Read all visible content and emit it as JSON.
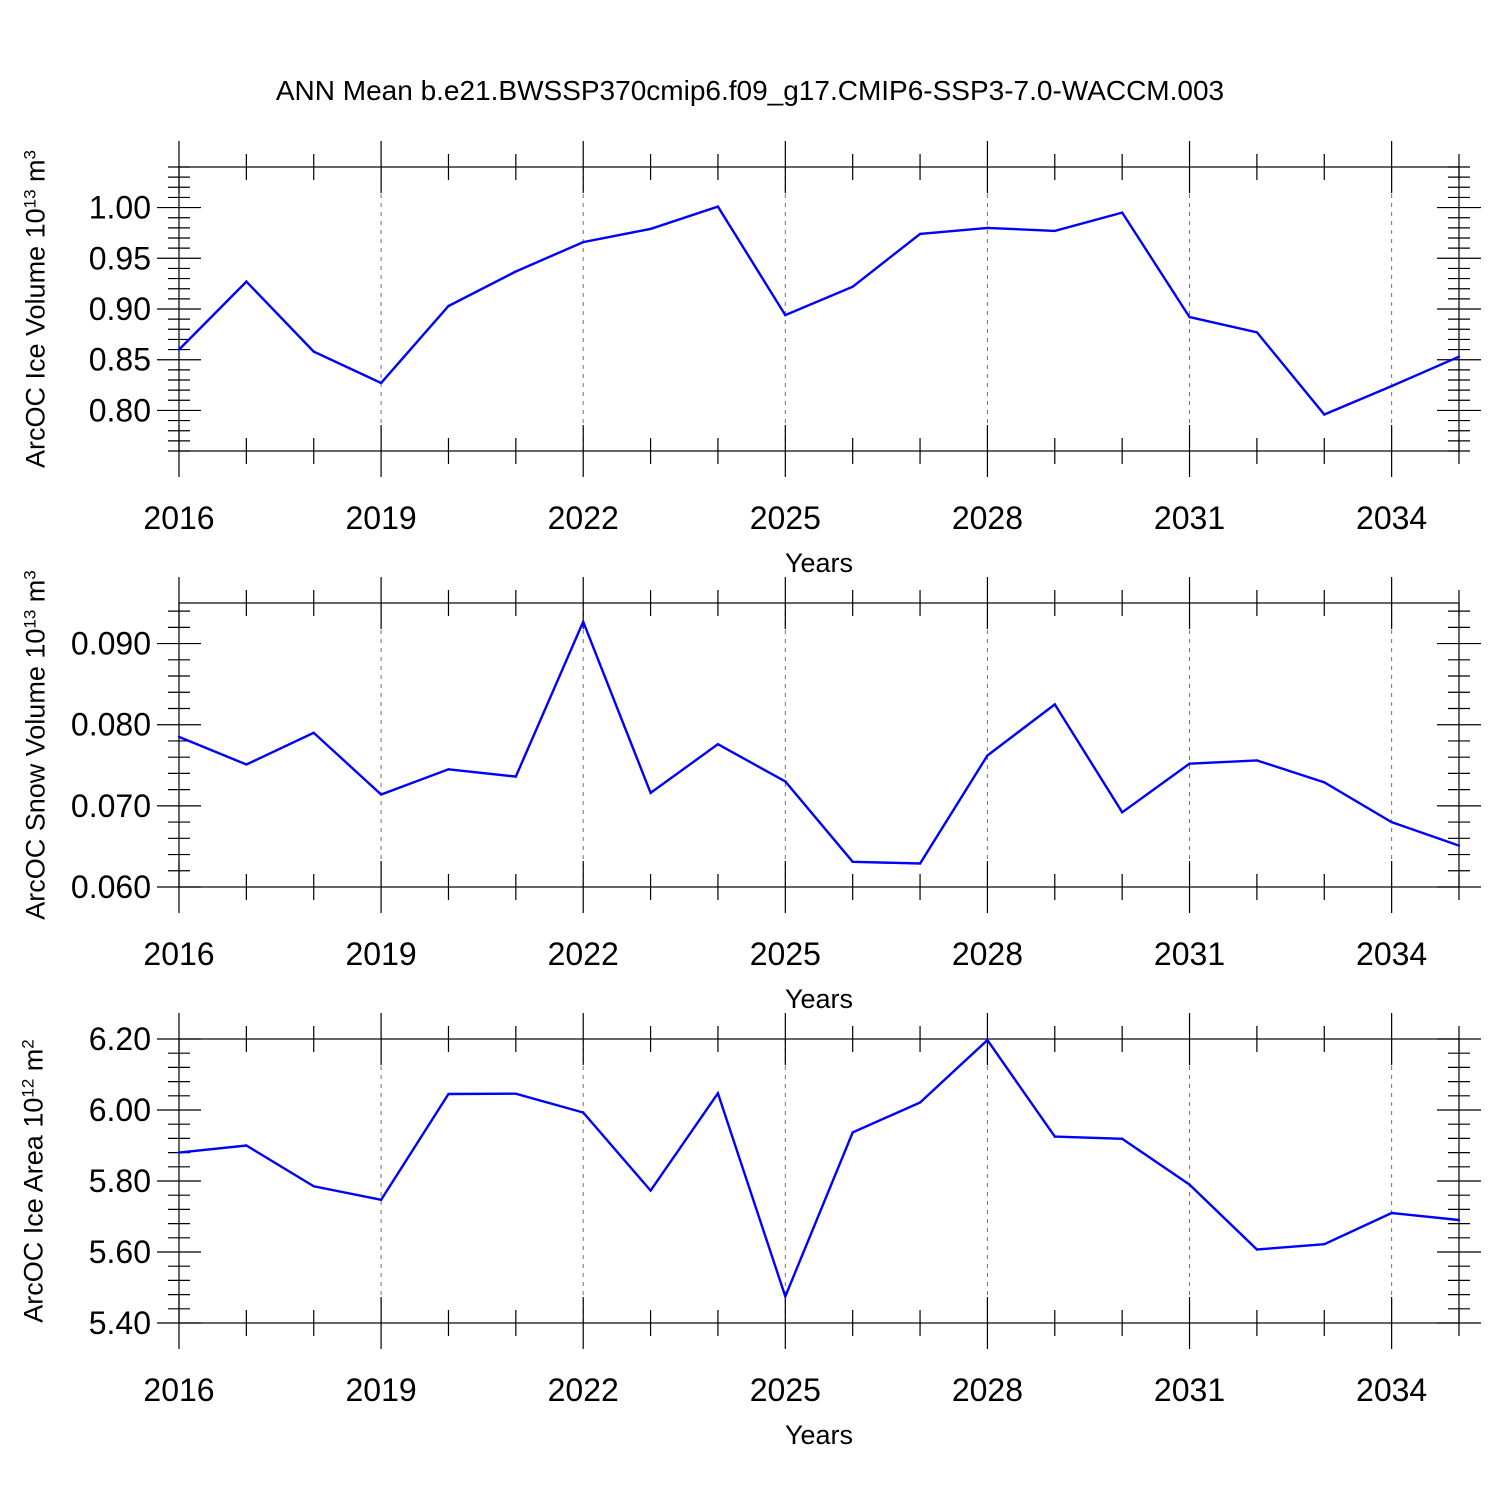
{
  "title": "ANN Mean b.e21.BWSSP370cmip6.f09_g17.CMIP6-SSP3-7.0-WACCM.003",
  "line_color": "#0000ff",
  "chart_data": [
    {
      "type": "line",
      "ylabel": "ArcOC Ice Volume 10",
      "ylabel_exp": "13",
      "ylabel_unit": " m",
      "ylabel_unit_exp": "3",
      "xlabel": "Years",
      "xlim": [
        2016,
        2035
      ],
      "ylim": [
        0.76,
        1.04
      ],
      "xticks": [
        2016,
        2019,
        2022,
        2025,
        2028,
        2031,
        2034
      ],
      "xtick_labels": [
        "2016",
        "2019",
        "2022",
        "2025",
        "2028",
        "2031",
        "2034"
      ],
      "yticks": [
        0.8,
        0.85,
        0.9,
        0.95,
        1.0
      ],
      "ytick_labels": [
        "0.80",
        "0.85",
        "0.90",
        "0.95",
        "1.00"
      ],
      "x": [
        2016,
        2017,
        2018,
        2019,
        2020,
        2021,
        2022,
        2023,
        2024,
        2025,
        2026,
        2027,
        2028,
        2029,
        2030,
        2031,
        2032,
        2033,
        2034,
        2035
      ],
      "values": [
        0.86,
        0.927,
        0.858,
        0.827,
        0.903,
        0.937,
        0.966,
        0.979,
        1.001,
        0.894,
        0.922,
        0.974,
        0.98,
        0.977,
        0.995,
        0.892,
        0.877,
        0.796,
        0.824,
        0.853
      ]
    },
    {
      "type": "line",
      "ylabel": "ArcOC Snow Volume 10",
      "ylabel_exp": "13",
      "ylabel_unit": " m",
      "ylabel_unit_exp": "3",
      "xlabel": "Years",
      "xlim": [
        2016,
        2035
      ],
      "ylim": [
        0.06,
        0.095
      ],
      "xticks": [
        2016,
        2019,
        2022,
        2025,
        2028,
        2031,
        2034
      ],
      "xtick_labels": [
        "2016",
        "2019",
        "2022",
        "2025",
        "2028",
        "2031",
        "2034"
      ],
      "yticks": [
        0.06,
        0.07,
        0.08,
        0.09
      ],
      "ytick_labels": [
        "0.060",
        "0.070",
        "0.080",
        "0.090"
      ],
      "x": [
        2016,
        2017,
        2018,
        2019,
        2020,
        2021,
        2022,
        2023,
        2024,
        2025,
        2026,
        2027,
        2028,
        2029,
        2030,
        2031,
        2032,
        2033,
        2034,
        2035
      ],
      "values": [
        0.0785,
        0.0751,
        0.079,
        0.0714,
        0.0745,
        0.0736,
        0.0927,
        0.0716,
        0.0776,
        0.073,
        0.0631,
        0.0629,
        0.0762,
        0.0825,
        0.0692,
        0.0752,
        0.0756,
        0.0729,
        0.068,
        0.0651
      ]
    },
    {
      "type": "line",
      "ylabel": "ArcOC Ice Area 10",
      "ylabel_exp": "12",
      "ylabel_unit": " m",
      "ylabel_unit_exp": "2",
      "xlabel": "Years",
      "xlim": [
        2016,
        2035
      ],
      "ylim": [
        5.4,
        6.2
      ],
      "xticks": [
        2016,
        2019,
        2022,
        2025,
        2028,
        2031,
        2034
      ],
      "xtick_labels": [
        "2016",
        "2019",
        "2022",
        "2025",
        "2028",
        "2031",
        "2034"
      ],
      "yticks": [
        5.4,
        5.6,
        5.8,
        6.0,
        6.2
      ],
      "ytick_labels": [
        "5.40",
        "5.60",
        "5.80",
        "6.00",
        "6.20"
      ],
      "x": [
        2016,
        2017,
        2018,
        2019,
        2020,
        2021,
        2022,
        2023,
        2024,
        2025,
        2026,
        2027,
        2028,
        2029,
        2030,
        2031,
        2032,
        2033,
        2034,
        2035
      ],
      "values": [
        5.88,
        5.9,
        5.785,
        5.747,
        6.045,
        6.046,
        5.993,
        5.773,
        6.047,
        5.475,
        5.937,
        6.021,
        6.197,
        5.925,
        5.919,
        5.79,
        5.607,
        5.622,
        5.71,
        5.69
      ]
    }
  ]
}
